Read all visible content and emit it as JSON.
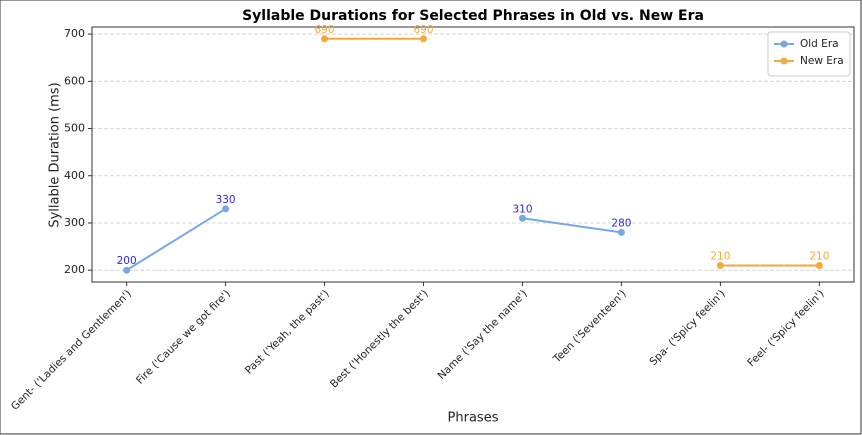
{
  "chart_data": {
    "type": "line",
    "title": "Syllable Durations for Selected Phrases in Old vs. New Era",
    "x_label": "Phrases",
    "y_label": "Syllable Duration (ms)",
    "categories": [
      "Gent- ('Ladies and Gentlemen')",
      "Fire ('Cause we got fire')",
      "Past ('Yeah, the past')",
      "Best ('Honestly the best')",
      "Name ('Say the name')",
      "Teen ('Seventeen')",
      "Spa- ('Spicy feelin')",
      "Feel- ('Spicy feelin')"
    ],
    "series": [
      {
        "name": "Old Era",
        "color": "#74a9e6",
        "label_color": "#2b2bd6",
        "values": [
          200,
          330,
          null,
          null,
          310,
          280,
          null,
          null
        ]
      },
      {
        "name": "New Era",
        "color": "#f5a93a",
        "label_color": "#f5a93a",
        "values": [
          null,
          null,
          690,
          690,
          null,
          null,
          210,
          210
        ]
      }
    ],
    "ylim": [
      175,
      715
    ],
    "yticks": [
      200,
      300,
      400,
      500,
      600,
      700
    ],
    "grid": true,
    "legend": "upper right"
  }
}
